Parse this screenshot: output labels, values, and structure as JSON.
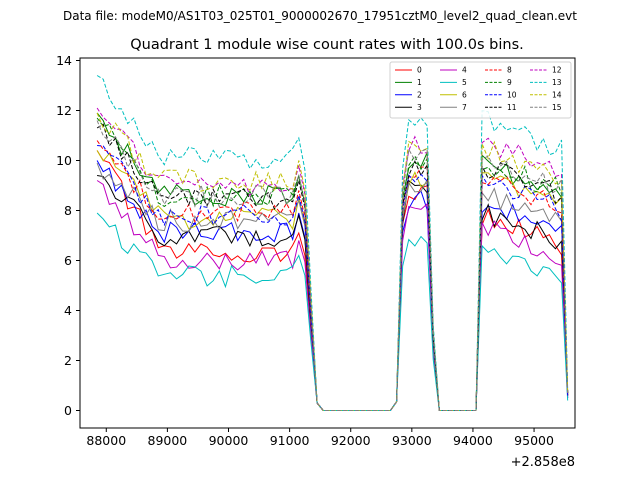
{
  "chart_data": {
    "type": "line",
    "suptitle": "Data file: modeM0/AS1T03_025T01_9000002670_17951cztM0_level2_quad_clean.evt",
    "title": "Quadrant 1 module wise count rates with 100.0s bins.",
    "xlabel": "",
    "ylabel": "",
    "offset_label": "+2.858e8",
    "xlim": [
      87570,
      95670
    ],
    "ylim": [
      -0.7,
      14.1
    ],
    "x_ticks": [
      88000,
      89000,
      90000,
      91000,
      92000,
      93000,
      94000,
      95000
    ],
    "x_tick_labels": [
      "88000",
      "89000",
      "90000",
      "91000",
      "92000",
      "93000",
      "94000",
      "95000"
    ],
    "y_ticks": [
      0,
      2,
      4,
      6,
      8,
      10,
      12,
      14
    ],
    "y_tick_labels": [
      "0",
      "2",
      "4",
      "6",
      "8",
      "10",
      "12",
      "14"
    ],
    "grid": false,
    "legend_position": "top-right",
    "legend_columns": 4,
    "time_segments": [
      {
        "start": 87850,
        "end": 91150,
        "step": 100,
        "state": "on"
      },
      {
        "start": 91250,
        "end": 91450,
        "step": 100,
        "state": "falling"
      },
      {
        "start": 91550,
        "end": 92650,
        "step": 100,
        "state": "off"
      },
      {
        "start": 92750,
        "end": 92850,
        "step": 100,
        "state": "rising"
      },
      {
        "start": 92950,
        "end": 93250,
        "step": 100,
        "state": "on"
      },
      {
        "start": 93350,
        "end": 93450,
        "step": 100,
        "state": "falling"
      },
      {
        "start": 93550,
        "end": 94050,
        "step": 100,
        "state": "off"
      },
      {
        "start": 94150,
        "end": 95450,
        "step": 100,
        "state": "on"
      },
      {
        "start": 95550,
        "end": 95550,
        "step": 100,
        "state": "end"
      }
    ],
    "series": [
      {
        "name": "0",
        "color": "#ff0000",
        "dash": "solid",
        "start": 10.4,
        "level": 6.3,
        "peak2": 8.8,
        "peak3": 6.9,
        "end": 0.6
      },
      {
        "name": "1",
        "color": "#008000",
        "dash": "solid",
        "start": 11.9,
        "level": 8.6,
        "peak2": 10.0,
        "peak3": 9.0,
        "end": 0.7
      },
      {
        "name": "2",
        "color": "#0000ff",
        "dash": "solid",
        "start": 10.0,
        "level": 7.1,
        "peak2": 8.4,
        "peak3": 7.4,
        "end": 0.5
      },
      {
        "name": "3",
        "color": "#000000",
        "dash": "solid",
        "start": 9.4,
        "level": 7.0,
        "peak2": 8.8,
        "peak3": 7.1,
        "end": 0.6
      },
      {
        "name": "4",
        "color": "#bf00bf",
        "dash": "solid",
        "start": 9.2,
        "level": 6.0,
        "peak2": 8.0,
        "peak3": 6.5,
        "end": 0.5
      },
      {
        "name": "5",
        "color": "#00bfbf",
        "dash": "solid",
        "start": 7.9,
        "level": 5.4,
        "peak2": 6.8,
        "peak3": 5.7,
        "end": 0.4
      },
      {
        "name": "6",
        "color": "#bfbf00",
        "dash": "solid",
        "start": 10.4,
        "level": 7.7,
        "peak2": 9.2,
        "peak3": 8.5,
        "end": 0.6
      },
      {
        "name": "7",
        "color": "#808080",
        "dash": "solid",
        "start": 9.9,
        "level": 7.6,
        "peak2": 9.0,
        "peak3": 7.8,
        "end": 0.6
      },
      {
        "name": "8",
        "color": "#ff0000",
        "dash": "dashed",
        "start": 10.8,
        "level": 8.0,
        "peak2": 9.6,
        "peak3": 8.4,
        "end": 0.6
      },
      {
        "name": "9",
        "color": "#008000",
        "dash": "dashed",
        "start": 11.7,
        "level": 8.6,
        "peak2": 9.9,
        "peak3": 9.1,
        "end": 0.7
      },
      {
        "name": "10",
        "color": "#0000ff",
        "dash": "dashed",
        "start": 10.6,
        "level": 7.8,
        "peak2": 9.4,
        "peak3": 8.3,
        "end": 0.6
      },
      {
        "name": "11",
        "color": "#000000",
        "dash": "dashed",
        "start": 11.3,
        "level": 8.4,
        "peak2": 9.7,
        "peak3": 8.9,
        "end": 0.7
      },
      {
        "name": "12",
        "color": "#bf00bf",
        "dash": "dashed",
        "start": 12.1,
        "level": 9.0,
        "peak2": 10.6,
        "peak3": 9.9,
        "end": 0.7
      },
      {
        "name": "13",
        "color": "#00bfbf",
        "dash": "dashed",
        "start": 13.4,
        "level": 10.1,
        "peak2": 11.4,
        "peak3": 10.7,
        "end": 0.8
      },
      {
        "name": "14",
        "color": "#bfbf00",
        "dash": "dashed",
        "start": 11.9,
        "level": 9.2,
        "peak2": 10.4,
        "peak3": 9.6,
        "end": 0.7
      },
      {
        "name": "15",
        "color": "#808080",
        "dash": "dashed",
        "start": 11.6,
        "level": 8.6,
        "peak2": 10.2,
        "peak3": 9.1,
        "end": 0.7
      }
    ]
  }
}
